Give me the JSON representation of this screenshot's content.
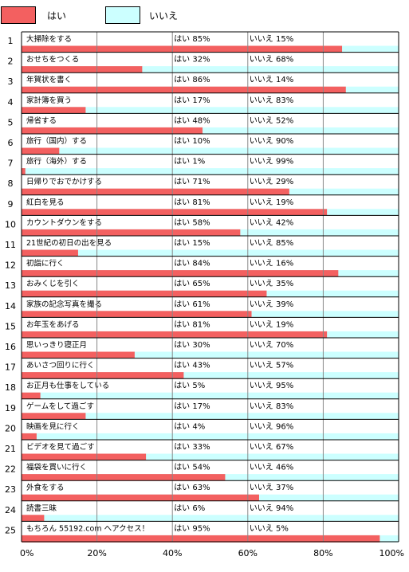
{
  "legend": {
    "yes_label": "はい",
    "no_label": "いいえ",
    "yes_color": "#f36060",
    "no_color": "#ccffff"
  },
  "chart_data": {
    "type": "bar",
    "orientation": "horizontal",
    "stacked": true,
    "xlim": [
      0,
      100
    ],
    "x_ticks": [
      "0%",
      "20%",
      "40%",
      "60%",
      "80%",
      "100%"
    ],
    "grid": true,
    "legend_placement": "top-left",
    "items": [
      {
        "num": "1",
        "label": "大掃除をする",
        "yes_text": "はい 85%",
        "no_text": "いいえ 15%",
        "yes": 85,
        "no": 15
      },
      {
        "num": "2",
        "label": "おせちをつくる",
        "yes_text": "はい 32%",
        "no_text": "いいえ 68%",
        "yes": 32,
        "no": 68
      },
      {
        "num": "3",
        "label": "年賀状を書く",
        "yes_text": "はい 86%",
        "no_text": "いいえ 14%",
        "yes": 86,
        "no": 14
      },
      {
        "num": "4",
        "label": "家計簿を買う",
        "yes_text": "はい 17%",
        "no_text": "いいえ 83%",
        "yes": 17,
        "no": 83
      },
      {
        "num": "5",
        "label": "帰省する",
        "yes_text": "はい 48%",
        "no_text": "いいえ 52%",
        "yes": 48,
        "no": 52
      },
      {
        "num": "6",
        "label": "旅行（国内）する",
        "yes_text": "はい 10%",
        "no_text": "いいえ 90%",
        "yes": 10,
        "no": 90
      },
      {
        "num": "7",
        "label": "旅行（海外）する",
        "yes_text": "はい  1%",
        "no_text": "いいえ 99%",
        "yes": 1,
        "no": 99
      },
      {
        "num": "8",
        "label": "日帰りでおでかけする",
        "yes_text": "はい 71%",
        "no_text": "いいえ 29%",
        "yes": 71,
        "no": 29
      },
      {
        "num": "9",
        "label": "紅白を見る",
        "yes_text": "はい 81%",
        "no_text": "いいえ 19%",
        "yes": 81,
        "no": 19
      },
      {
        "num": "10",
        "label": "カウントダウンをする",
        "yes_text": "はい 58%",
        "no_text": "いいえ 42%",
        "yes": 58,
        "no": 42
      },
      {
        "num": "11",
        "label": "21世紀の初日の出を見る",
        "yes_text": "はい 15%",
        "no_text": "いいえ 85%",
        "yes": 15,
        "no": 85
      },
      {
        "num": "12",
        "label": "初詣に行く",
        "yes_text": "はい 84%",
        "no_text": "いいえ 16%",
        "yes": 84,
        "no": 16
      },
      {
        "num": "13",
        "label": "おみくじを引く",
        "yes_text": "はい 65%",
        "no_text": "いいえ 35%",
        "yes": 65,
        "no": 35
      },
      {
        "num": "14",
        "label": "家族の記念写真を撮る",
        "yes_text": "はい 61%",
        "no_text": "いいえ 39%",
        "yes": 61,
        "no": 39
      },
      {
        "num": "15",
        "label": "お年玉をあげる",
        "yes_text": "はい 81%",
        "no_text": "いいえ 19%",
        "yes": 81,
        "no": 19
      },
      {
        "num": "16",
        "label": "思いっきり寝正月",
        "yes_text": "はい 30%",
        "no_text": "いいえ 70%",
        "yes": 30,
        "no": 70
      },
      {
        "num": "17",
        "label": "あいさつ回りに行く",
        "yes_text": "はい 43%",
        "no_text": "いいえ 57%",
        "yes": 43,
        "no": 57
      },
      {
        "num": "18",
        "label": "お正月も仕事をしている",
        "yes_text": "はい  5%",
        "no_text": "いいえ 95%",
        "yes": 5,
        "no": 95
      },
      {
        "num": "19",
        "label": "ゲームをして過ごす",
        "yes_text": "はい 17%",
        "no_text": "いいえ 83%",
        "yes": 17,
        "no": 83
      },
      {
        "num": "20",
        "label": "映画を見に行く",
        "yes_text": "はい  4%",
        "no_text": "いいえ 96%",
        "yes": 4,
        "no": 96
      },
      {
        "num": "21",
        "label": "ビデオを見て過ごす",
        "yes_text": "はい 33%",
        "no_text": "いいえ 67%",
        "yes": 33,
        "no": 67
      },
      {
        "num": "22",
        "label": "福袋を買いに行く",
        "yes_text": "はい 54%",
        "no_text": "いいえ 46%",
        "yes": 54,
        "no": 46
      },
      {
        "num": "23",
        "label": "外食をする",
        "yes_text": "はい 63%",
        "no_text": "いいえ 37%",
        "yes": 63,
        "no": 37
      },
      {
        "num": "24",
        "label": "読書三昧",
        "yes_text": "はい  6%",
        "no_text": "いいえ 94%",
        "yes": 6,
        "no": 94
      },
      {
        "num": "25",
        "label": "もちろん 55192.com へアクセス！",
        "yes_text": "はい 95%",
        "no_text": "いいえ  5%",
        "yes": 95,
        "no": 5
      }
    ]
  }
}
